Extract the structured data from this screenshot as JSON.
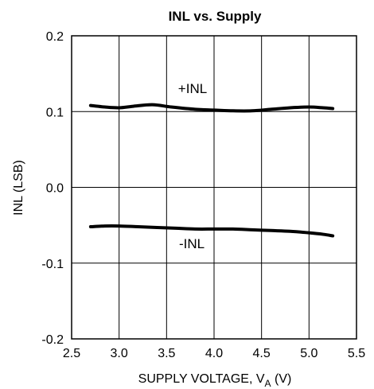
{
  "chart_data": {
    "type": "line",
    "title": "INL vs. Supply",
    "xlabel": {
      "main": "SUPPLY VOLTAGE, V",
      "sub": "A",
      "tail": " (V)"
    },
    "ylabel": "INL (LSB)",
    "xlim": [
      2.5,
      5.5
    ],
    "ylim": [
      -0.2,
      0.2
    ],
    "x_ticks": [
      "2.5",
      "3.0",
      "3.5",
      "4.0",
      "4.5",
      "5.0",
      "5.5"
    ],
    "y_ticks": [
      "0.2",
      "0.1",
      "0.0",
      "-0.1",
      "-0.2"
    ],
    "grid": true,
    "series": [
      {
        "name": "+INL",
        "x": [
          2.7,
          2.85,
          3.0,
          3.15,
          3.35,
          3.55,
          3.8,
          4.0,
          4.2,
          4.4,
          4.6,
          4.8,
          5.0,
          5.15,
          5.25
        ],
        "y": [
          0.108,
          0.106,
          0.105,
          0.107,
          0.109,
          0.106,
          0.103,
          0.102,
          0.101,
          0.101,
          0.103,
          0.105,
          0.106,
          0.105,
          0.104
        ]
      },
      {
        "name": "-INL",
        "x": [
          2.7,
          2.85,
          3.0,
          3.2,
          3.4,
          3.6,
          3.8,
          4.0,
          4.2,
          4.4,
          4.6,
          4.8,
          5.0,
          5.15,
          5.25
        ],
        "y": [
          -0.052,
          -0.051,
          -0.051,
          -0.052,
          -0.053,
          -0.054,
          -0.055,
          -0.055,
          -0.055,
          -0.056,
          -0.057,
          -0.058,
          -0.06,
          -0.062,
          -0.064
        ]
      }
    ],
    "annotations": [
      "+INL",
      "-INL"
    ]
  }
}
